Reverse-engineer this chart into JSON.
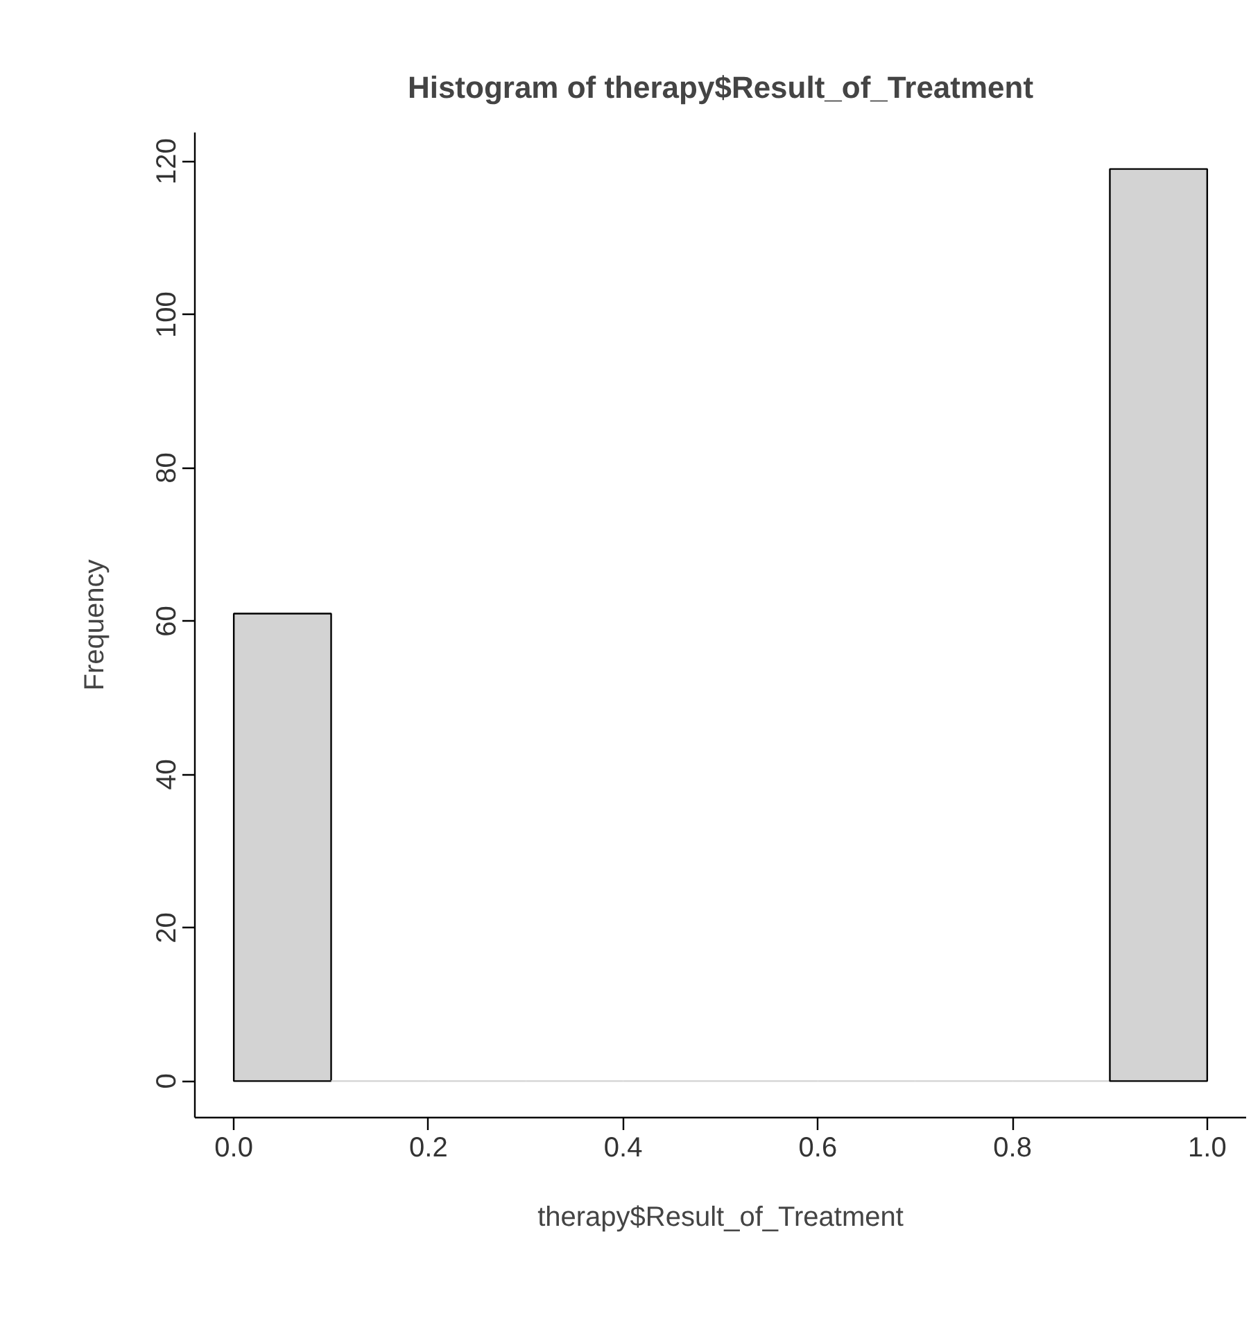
{
  "chart_data": {
    "type": "histogram",
    "title": "Histogram of therapy$Result_of_Treatment",
    "xlabel": "therapy$Result_of_Treatment",
    "ylabel": "Frequency",
    "bins": [
      0,
      0.1,
      0.2,
      0.3,
      0.4,
      0.5,
      0.6,
      0.7,
      0.8,
      0.9,
      1.0
    ],
    "values": [
      61,
      0,
      0,
      0,
      0,
      0,
      0,
      0,
      0,
      119
    ],
    "color": "#d3d3d3",
    "xlim": [
      -0.04,
      1.04
    ],
    "ylim": [
      -4.76,
      123.76
    ],
    "xticks": [
      {
        "value": 0,
        "label": "0.0"
      },
      {
        "value": 0.2,
        "label": "0.2"
      },
      {
        "value": 0.4,
        "label": "0.4"
      },
      {
        "value": 0.6,
        "label": "0.6"
      },
      {
        "value": 0.8,
        "label": "0.8"
      },
      {
        "value": 1.0,
        "label": "1.0"
      }
    ],
    "yticks": [
      0,
      20,
      40,
      60,
      80,
      100,
      120
    ]
  }
}
